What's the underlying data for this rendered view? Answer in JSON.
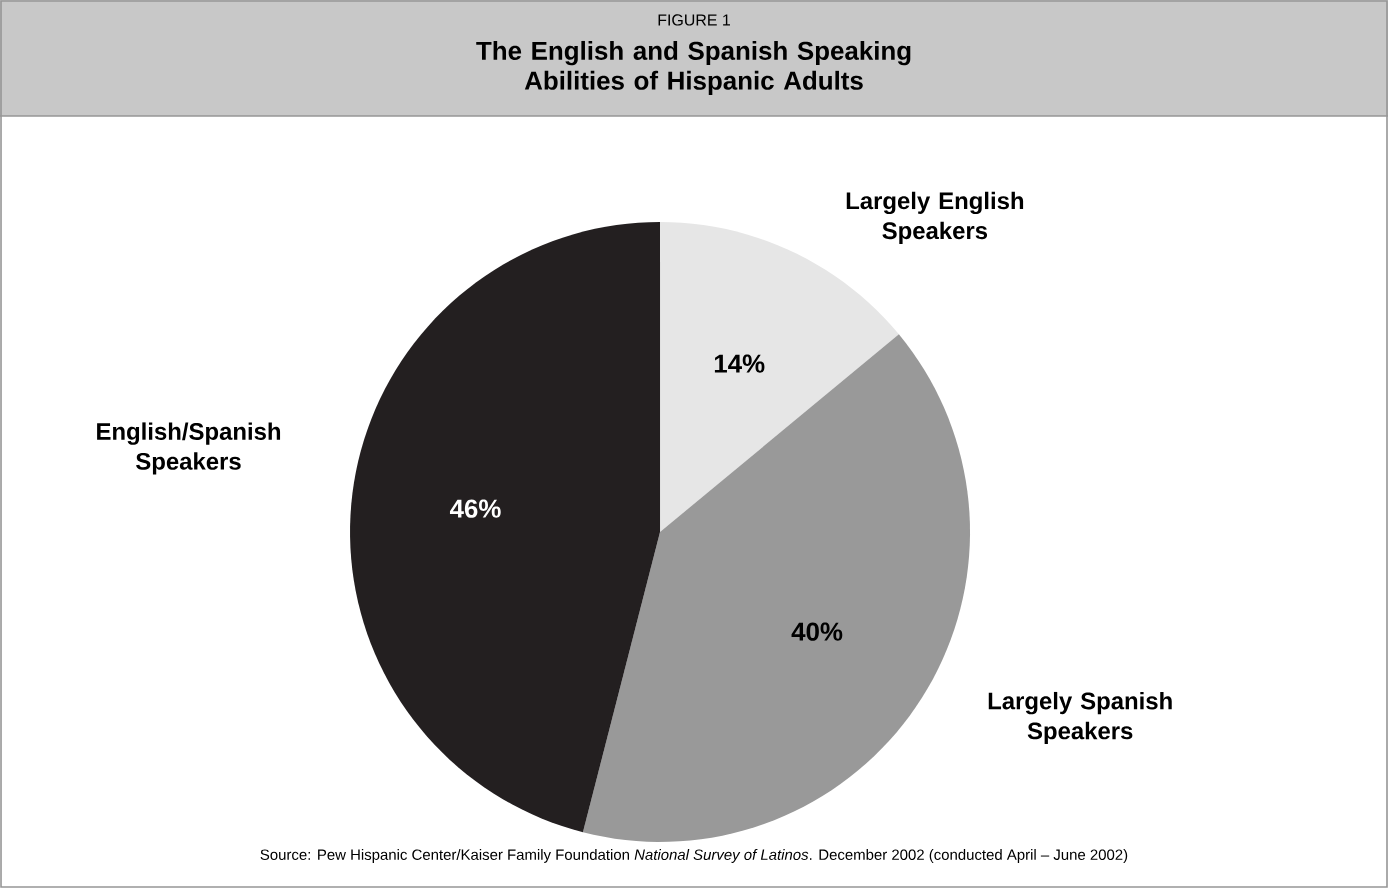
{
  "chart_data": {
    "type": "pie",
    "subtitle": "FIGURE 1",
    "title": "The English and Spanish Speaking Abilities of Hispanic Adults",
    "categories": [
      "Largely English Speakers",
      "Largely Spanish Speakers",
      "English/Spanish Speakers"
    ],
    "values": [
      14,
      40,
      46
    ],
    "colors": [
      "#e6e6e6",
      "#999999",
      "#231f20"
    ],
    "value_labels": [
      "14%",
      "40%",
      "46%"
    ],
    "annotations": [
      "Source: Pew Hispanic Center/Kaiser Family Foundation *National Survey of Latinos*. December 2002 (conducted April – June 2002)"
    ]
  }
}
